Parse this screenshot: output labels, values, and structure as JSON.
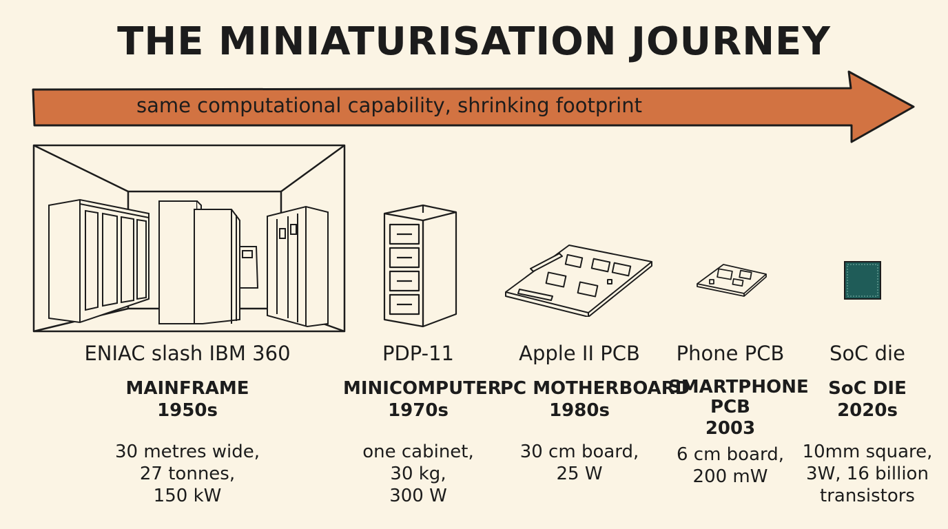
{
  "title": "THE MINIATURISATION JOURNEY",
  "arrow_label": "same computational capability, shrinking footprint",
  "colors": {
    "background": "#fbf4e4",
    "arrow_fill": "#d27342",
    "chip": "#1f5c58",
    "ink": "#1c1c1c"
  },
  "stages": [
    {
      "name": "ENIAC slash IBM 360",
      "type": "MAINFRAME",
      "era": "1950s",
      "spec": [
        "30 metres wide,",
        "27 tonnes,",
        "150 kW"
      ]
    },
    {
      "name": "PDP-11",
      "type": "MINICOMPUTER",
      "era": "1970s",
      "spec": [
        "one cabinet,",
        "30 kg,",
        "300 W"
      ]
    },
    {
      "name": "Apple II PCB",
      "type": "PC MOTHERBOARD",
      "era": "1980s",
      "spec": [
        "30 cm board,",
        "25 W"
      ]
    },
    {
      "name": "Phone PCB",
      "type": [
        "SMARTPHONE",
        "PCB"
      ],
      "era": "2003",
      "spec": [
        "6 cm board,",
        "200 mW"
      ]
    },
    {
      "name": "SoC die",
      "type": "SoC DIE",
      "era": "2020s",
      "spec": [
        "10mm square,",
        "3W, 16 billion",
        "transistors"
      ]
    }
  ]
}
